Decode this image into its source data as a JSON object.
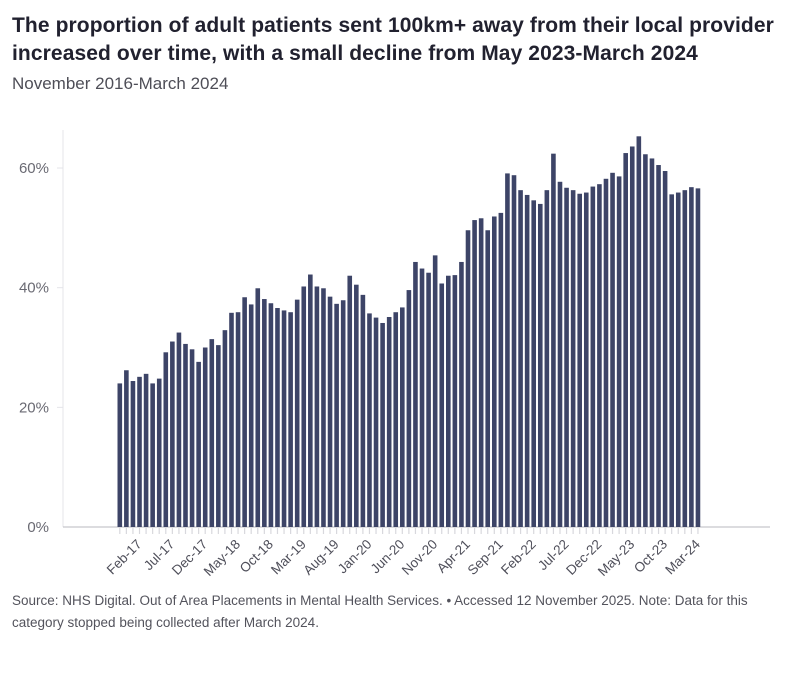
{
  "header": {
    "title": "The proportion of adult patients sent 100km+ away from their local provider increased over time, with a small decline from May 2023-March 2024",
    "subtitle": "November 2016-March 2024"
  },
  "chart_data": {
    "type": "bar",
    "title": "The proportion of adult patients sent 100km+ away from their local provider increased over time, with a small decline from May 2023-March 2024",
    "subtitle": "November 2016-March 2024",
    "x": [
      "Nov-16",
      "Dec-16",
      "Jan-17",
      "Feb-17",
      "Mar-17",
      "Apr-17",
      "May-17",
      "Jun-17",
      "Jul-17",
      "Aug-17",
      "Sep-17",
      "Oct-17",
      "Nov-17",
      "Dec-17",
      "Jan-18",
      "Feb-18",
      "Mar-18",
      "Apr-18",
      "May-18",
      "Jun-18",
      "Jul-18",
      "Aug-18",
      "Sep-18",
      "Oct-18",
      "Nov-18",
      "Dec-18",
      "Jan-19",
      "Feb-19",
      "Mar-19",
      "Apr-19",
      "May-19",
      "Jun-19",
      "Jul-19",
      "Aug-19",
      "Sep-19",
      "Oct-19",
      "Nov-19",
      "Dec-19",
      "Jan-20",
      "Feb-20",
      "Mar-20",
      "Apr-20",
      "May-20",
      "Jun-20",
      "Jul-20",
      "Aug-20",
      "Sep-20",
      "Oct-20",
      "Nov-20",
      "Dec-20",
      "Jan-21",
      "Feb-21",
      "Mar-21",
      "Apr-21",
      "May-21",
      "Jun-21",
      "Jul-21",
      "Aug-21",
      "Sep-21",
      "Oct-21",
      "Nov-21",
      "Dec-21",
      "Jan-22",
      "Feb-22",
      "Mar-22",
      "Apr-22",
      "May-22",
      "Jun-22",
      "Jul-22",
      "Aug-22",
      "Sep-22",
      "Oct-22",
      "Nov-22",
      "Dec-22",
      "Jan-23",
      "Feb-23",
      "Mar-23",
      "Apr-23",
      "May-23",
      "Jun-23",
      "Jul-23",
      "Aug-23",
      "Sep-23",
      "Oct-23",
      "Nov-23",
      "Dec-23",
      "Jan-24",
      "Feb-24",
      "Mar-24"
    ],
    "values": [
      24.0,
      26.2,
      24.4,
      25.1,
      25.6,
      24.0,
      24.8,
      29.2,
      31.0,
      32.5,
      30.6,
      29.7,
      27.6,
      30.0,
      31.4,
      30.4,
      32.9,
      35.8,
      35.9,
      38.4,
      37.2,
      39.9,
      38.1,
      37.4,
      36.6,
      36.2,
      35.9,
      38.0,
      40.2,
      42.2,
      40.2,
      39.9,
      38.5,
      37.3,
      37.9,
      42.0,
      40.5,
      38.8,
      35.7,
      35.0,
      34.1,
      35.1,
      35.9,
      36.7,
      39.6,
      44.3,
      43.2,
      42.5,
      45.4,
      40.7,
      42.0,
      42.1,
      44.3,
      49.6,
      51.3,
      51.6,
      49.6,
      51.9,
      52.5,
      59.1,
      58.8,
      56.3,
      55.5,
      54.6,
      54.0,
      56.3,
      62.4,
      57.7,
      56.7,
      56.3,
      55.7,
      55.9,
      56.9,
      57.3,
      58.2,
      59.2,
      58.6,
      62.5,
      63.6,
      65.3,
      62.3,
      61.6,
      60.5,
      59.5,
      55.6,
      55.9,
      56.3,
      56.8,
      56.6
    ],
    "xlabel": "",
    "ylabel": "",
    "ylim": [
      0,
      68
    ],
    "y_ticks": [
      0,
      20,
      40,
      60
    ],
    "y_tick_labels": [
      "0%",
      "20%",
      "40%",
      "60%"
    ],
    "x_tick_labels_shown": [
      "Feb-17",
      "Jul-17",
      "Dec-17",
      "May-18",
      "Oct-18",
      "Mar-19",
      "Aug-19",
      "Jan-20",
      "Jun-20",
      "Nov-20",
      "Apr-21",
      "Sep-21",
      "Feb-22",
      "Jul-22",
      "Dec-22",
      "May-23",
      "Oct-23",
      "Mar-24"
    ],
    "x_tick_start_index": 3,
    "x_tick_every": 5,
    "grid": "y-ticks only, baseline shown",
    "legend_position": "none",
    "bar_color": "#3d4467",
    "baseline_color": "#c6c6cc",
    "axis_line_color": "#e4e4e9",
    "x_tick_mark_color": "#d8d8dd",
    "y_label_color": "#6a6a73",
    "x_label_color": "#4f4f5a"
  },
  "footer": {
    "text": "Source: NHS Digital. Out of Area Placements in Mental Health Services. • Accessed 12 November 2025. Note: Data for this category stopped being collected after March 2024."
  }
}
